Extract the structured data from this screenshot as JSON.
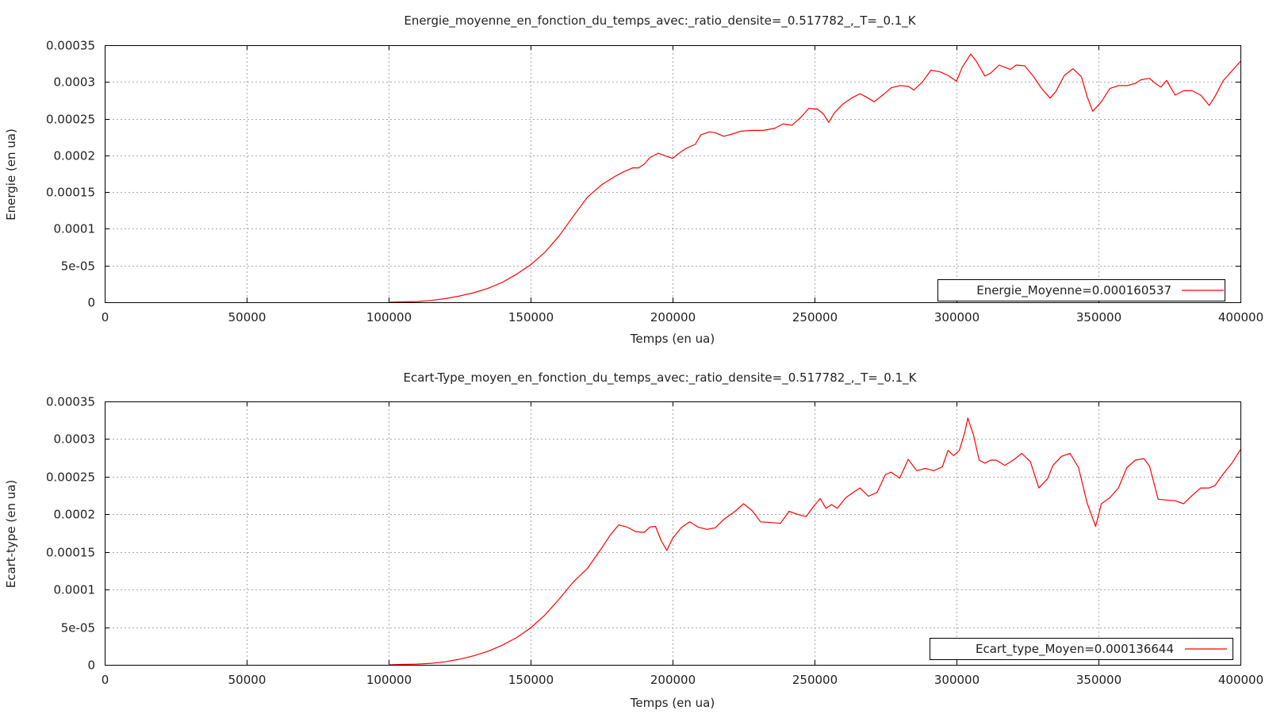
{
  "chart_data": [
    {
      "type": "line",
      "title": "Energie_moyenne_en_fonction_du_temps_avec:_ratio_densite=_0.517782_,_T=_0.1_K",
      "xlabel": "Temps (en ua)",
      "ylabel": "Energie (en ua)",
      "xlim": [
        0,
        400000
      ],
      "ylim": [
        0,
        0.00035
      ],
      "xticks": [
        "0",
        "50000",
        "100000",
        "150000",
        "200000",
        "250000",
        "300000",
        "350000",
        "400000"
      ],
      "yticks": [
        "0",
        "5e-05",
        "0.0001",
        "0.00015",
        "0.0002",
        "0.00025",
        "0.0003",
        "0.00035"
      ],
      "grid": true,
      "legend_position": "bottom-right",
      "color": "#ff0000",
      "series": [
        {
          "name": "Energie_Moyenne=0.000160537",
          "x": [
            100000,
            105000,
            110000,
            115000,
            120000,
            125000,
            130000,
            135000,
            140000,
            145000,
            150000,
            155000,
            160000,
            165000,
            170000,
            175000,
            180000,
            183000,
            186000,
            188000,
            190000,
            192000,
            195000,
            197000,
            200000,
            203000,
            205000,
            208000,
            210000,
            213000,
            215000,
            218000,
            221000,
            224000,
            228000,
            232000,
            236000,
            239000,
            242000,
            245000,
            248000,
            251000,
            253000,
            255000,
            257000,
            260000,
            263000,
            266000,
            268000,
            271000,
            274000,
            277000,
            280000,
            283000,
            285000,
            288000,
            291000,
            294000,
            297000,
            300000,
            302000,
            305000,
            307000,
            310000,
            312000,
            315000,
            317000,
            319000,
            321000,
            324000,
            327000,
            330000,
            333000,
            335000,
            338000,
            341000,
            344000,
            346000,
            348000,
            351000,
            354000,
            357000,
            360000,
            363000,
            365000,
            368000,
            370000,
            372000,
            374000,
            377000,
            380000,
            383000,
            386000,
            389000,
            391000,
            394000,
            397000,
            400000
          ],
          "y": [
            0,
            5e-07,
            1e-06,
            2.5e-06,
            5e-06,
            8.5e-06,
            1.3e-05,
            1.9e-05,
            2.7e-05,
            3.8e-05,
            5.1e-05,
            6.8e-05,
            9e-05,
            0.000117,
            0.000143,
            0.00016,
            0.000172,
            0.000178,
            0.000183,
            0.000183,
            0.000188,
            0.000197,
            0.000203,
            0.0002,
            0.000196,
            0.000205,
            0.00021,
            0.000215,
            0.000228,
            0.000232,
            0.000231,
            0.000226,
            0.000229,
            0.000233,
            0.000234,
            0.000234,
            0.000237,
            0.000243,
            0.000241,
            0.000251,
            0.000264,
            0.000263,
            0.000257,
            0.000245,
            0.000258,
            0.00027,
            0.000278,
            0.000284,
            0.00028,
            0.000273,
            0.000282,
            0.000292,
            0.000295,
            0.000294,
            0.000289,
            0.0003,
            0.000316,
            0.000314,
            0.000309,
            0.000301,
            0.00032,
            0.000338,
            0.000328,
            0.000308,
            0.000312,
            0.000323,
            0.00032,
            0.000317,
            0.000323,
            0.000322,
            0.000308,
            0.000291,
            0.000278,
            0.000287,
            0.000309,
            0.000318,
            0.000307,
            0.00028,
            0.00026,
            0.000273,
            0.000291,
            0.000295,
            0.000295,
            0.000298,
            0.000303,
            0.000305,
            0.000298,
            0.000293,
            0.000302,
            0.000282,
            0.000288,
            0.000288,
            0.000282,
            0.000268,
            0.00028,
            0.000302,
            0.000315,
            0.000328
          ]
        }
      ]
    },
    {
      "type": "line",
      "title": "Ecart-Type_moyen_en_fonction_du_temps_avec:_ratio_densite=_0.517782_,_T=_0.1_K",
      "xlabel": "Temps (en ua)",
      "ylabel": "Ecart-type (en ua)",
      "xlim": [
        0,
        400000
      ],
      "ylim": [
        0,
        0.00035
      ],
      "xticks": [
        "0",
        "50000",
        "100000",
        "150000",
        "200000",
        "250000",
        "300000",
        "350000",
        "400000"
      ],
      "yticks": [
        "0",
        "5e-05",
        "0.0001",
        "0.00015",
        "0.0002",
        "0.00025",
        "0.0003",
        "0.00035"
      ],
      "grid": true,
      "legend_position": "bottom-right",
      "color": "#ff0000",
      "series": [
        {
          "name": "Ecart_type_Moyen=0.000136644",
          "x": [
            100000,
            105000,
            110000,
            115000,
            120000,
            125000,
            130000,
            135000,
            140000,
            145000,
            150000,
            155000,
            160000,
            165000,
            170000,
            175000,
            178000,
            181000,
            184000,
            187000,
            190000,
            192000,
            194000,
            196000,
            198000,
            200000,
            203000,
            206000,
            209000,
            212000,
            215000,
            218000,
            222000,
            225000,
            228000,
            231000,
            235000,
            238000,
            241000,
            244000,
            247000,
            250000,
            252000,
            254000,
            256000,
            258000,
            261000,
            264000,
            266000,
            269000,
            272000,
            275000,
            277000,
            280000,
            283000,
            286000,
            289000,
            292000,
            295000,
            297000,
            299000,
            301000,
            303000,
            304000,
            306000,
            308000,
            310000,
            312000,
            314000,
            317000,
            320000,
            323000,
            326000,
            329000,
            332000,
            334000,
            337000,
            340000,
            343000,
            346000,
            349000,
            351000,
            354000,
            357000,
            360000,
            363000,
            366000,
            368000,
            371000,
            374000,
            377000,
            380000,
            383000,
            386000,
            389000,
            391000,
            394000,
            397000,
            400000
          ],
          "y": [
            0,
            5e-07,
            1e-06,
            2e-06,
            4e-06,
            7.5e-06,
            1.2e-05,
            1.8e-05,
            2.6e-05,
            3.6e-05,
            4.9e-05,
            6.6e-05,
            8.7e-05,
            0.00011,
            0.000128,
            0.000155,
            0.000172,
            0.000186,
            0.000183,
            0.000177,
            0.000176,
            0.000183,
            0.000184,
            0.000165,
            0.000152,
            0.000168,
            0.000182,
            0.00019,
            0.000183,
            0.00018,
            0.000182,
            0.000193,
            0.000204,
            0.000214,
            0.000205,
            0.00019,
            0.000189,
            0.000188,
            0.000204,
            0.0002,
            0.000197,
            0.000212,
            0.000221,
            0.000208,
            0.000213,
            0.000208,
            0.000222,
            0.00023,
            0.000235,
            0.000224,
            0.000229,
            0.000253,
            0.000256,
            0.000248,
            0.000273,
            0.000258,
            0.000261,
            0.000258,
            0.000263,
            0.000285,
            0.000278,
            0.000285,
            0.00031,
            0.000328,
            0.000305,
            0.000272,
            0.000268,
            0.000272,
            0.000272,
            0.000265,
            0.000272,
            0.000281,
            0.00027,
            0.000235,
            0.000247,
            0.000265,
            0.000277,
            0.000281,
            0.000262,
            0.000215,
            0.000184,
            0.000214,
            0.000222,
            0.000235,
            0.000262,
            0.000272,
            0.000274,
            0.000264,
            0.00022,
            0.000219,
            0.000218,
            0.000214,
            0.000225,
            0.000235,
            0.000235,
            0.000238,
            0.000254,
            0.000268,
            0.000286
          ]
        }
      ]
    }
  ]
}
